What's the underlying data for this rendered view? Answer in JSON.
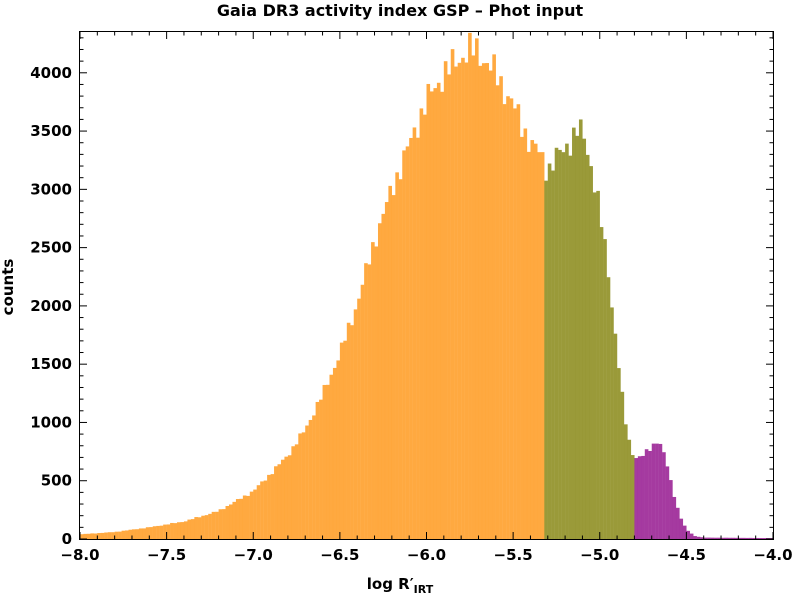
{
  "chart_data": {
    "type": "bar",
    "title": "Gaia DR3 activity index GSP – Phot input",
    "ylabel": "counts",
    "xlabel": {
      "main": "log R′",
      "sub": "IRT"
    },
    "xlim": [
      -8.0,
      -4.0
    ],
    "ylim": [
      0,
      4350
    ],
    "xticks": [
      -8.0,
      -7.5,
      -7.0,
      -6.5,
      -6.0,
      -5.5,
      -5.0,
      -4.5,
      -4.0
    ],
    "xtick_labels": [
      "−8.0",
      "−7.5",
      "−7.0",
      "−6.5",
      "−6.0",
      "−5.5",
      "−5.0",
      "−4.5",
      "−4.0"
    ],
    "yticks": [
      0,
      500,
      1000,
      1500,
      2000,
      2500,
      3000,
      3500,
      4000
    ],
    "ytick_labels": [
      "0",
      "500",
      "1000",
      "1500",
      "2000",
      "2500",
      "3000",
      "3500",
      "4000"
    ],
    "grid": false,
    "bin_width": 0.02,
    "segments": [
      {
        "range": [
          -8.0,
          -5.32
        ],
        "color": "#ffa02b"
      },
      {
        "range": [
          -5.32,
          -4.8
        ],
        "color": "#8f8f24"
      },
      {
        "range": [
          -4.8,
          -4.0
        ],
        "color": "#9b2596"
      }
    ],
    "profile": [
      [
        -8.0,
        40
      ],
      [
        -7.8,
        60
      ],
      [
        -7.6,
        100
      ],
      [
        -7.4,
        150
      ],
      [
        -7.2,
        240
      ],
      [
        -7.0,
        410
      ],
      [
        -6.9,
        560
      ],
      [
        -6.8,
        720
      ],
      [
        -6.7,
        940
      ],
      [
        -6.6,
        1240
      ],
      [
        -6.5,
        1590
      ],
      [
        -6.4,
        2020
      ],
      [
        -6.3,
        2560
      ],
      [
        -6.2,
        3000
      ],
      [
        -6.1,
        3380
      ],
      [
        -6.0,
        3760
      ],
      [
        -5.9,
        3990
      ],
      [
        -5.8,
        4140
      ],
      [
        -5.75,
        4200
      ],
      [
        -5.7,
        4180
      ],
      [
        -5.6,
        3990
      ],
      [
        -5.5,
        3720
      ],
      [
        -5.4,
        3390
      ],
      [
        -5.34,
        3300
      ],
      [
        -5.3,
        3160
      ],
      [
        -5.25,
        3270
      ],
      [
        -5.2,
        3360
      ],
      [
        -5.15,
        3450
      ],
      [
        -5.12,
        3520
      ],
      [
        -5.08,
        3420
      ],
      [
        -5.02,
        2980
      ],
      [
        -4.96,
        2420
      ],
      [
        -4.9,
        1620
      ],
      [
        -4.86,
        1080
      ],
      [
        -4.82,
        760
      ],
      [
        -4.79,
        700
      ],
      [
        -4.76,
        700
      ],
      [
        -4.72,
        760
      ],
      [
        -4.68,
        830
      ],
      [
        -4.66,
        850
      ],
      [
        -4.62,
        690
      ],
      [
        -4.58,
        430
      ],
      [
        -4.54,
        210
      ],
      [
        -4.5,
        80
      ],
      [
        -4.45,
        25
      ],
      [
        -4.4,
        12
      ],
      [
        -4.2,
        10
      ],
      [
        -4.02,
        8
      ]
    ]
  }
}
